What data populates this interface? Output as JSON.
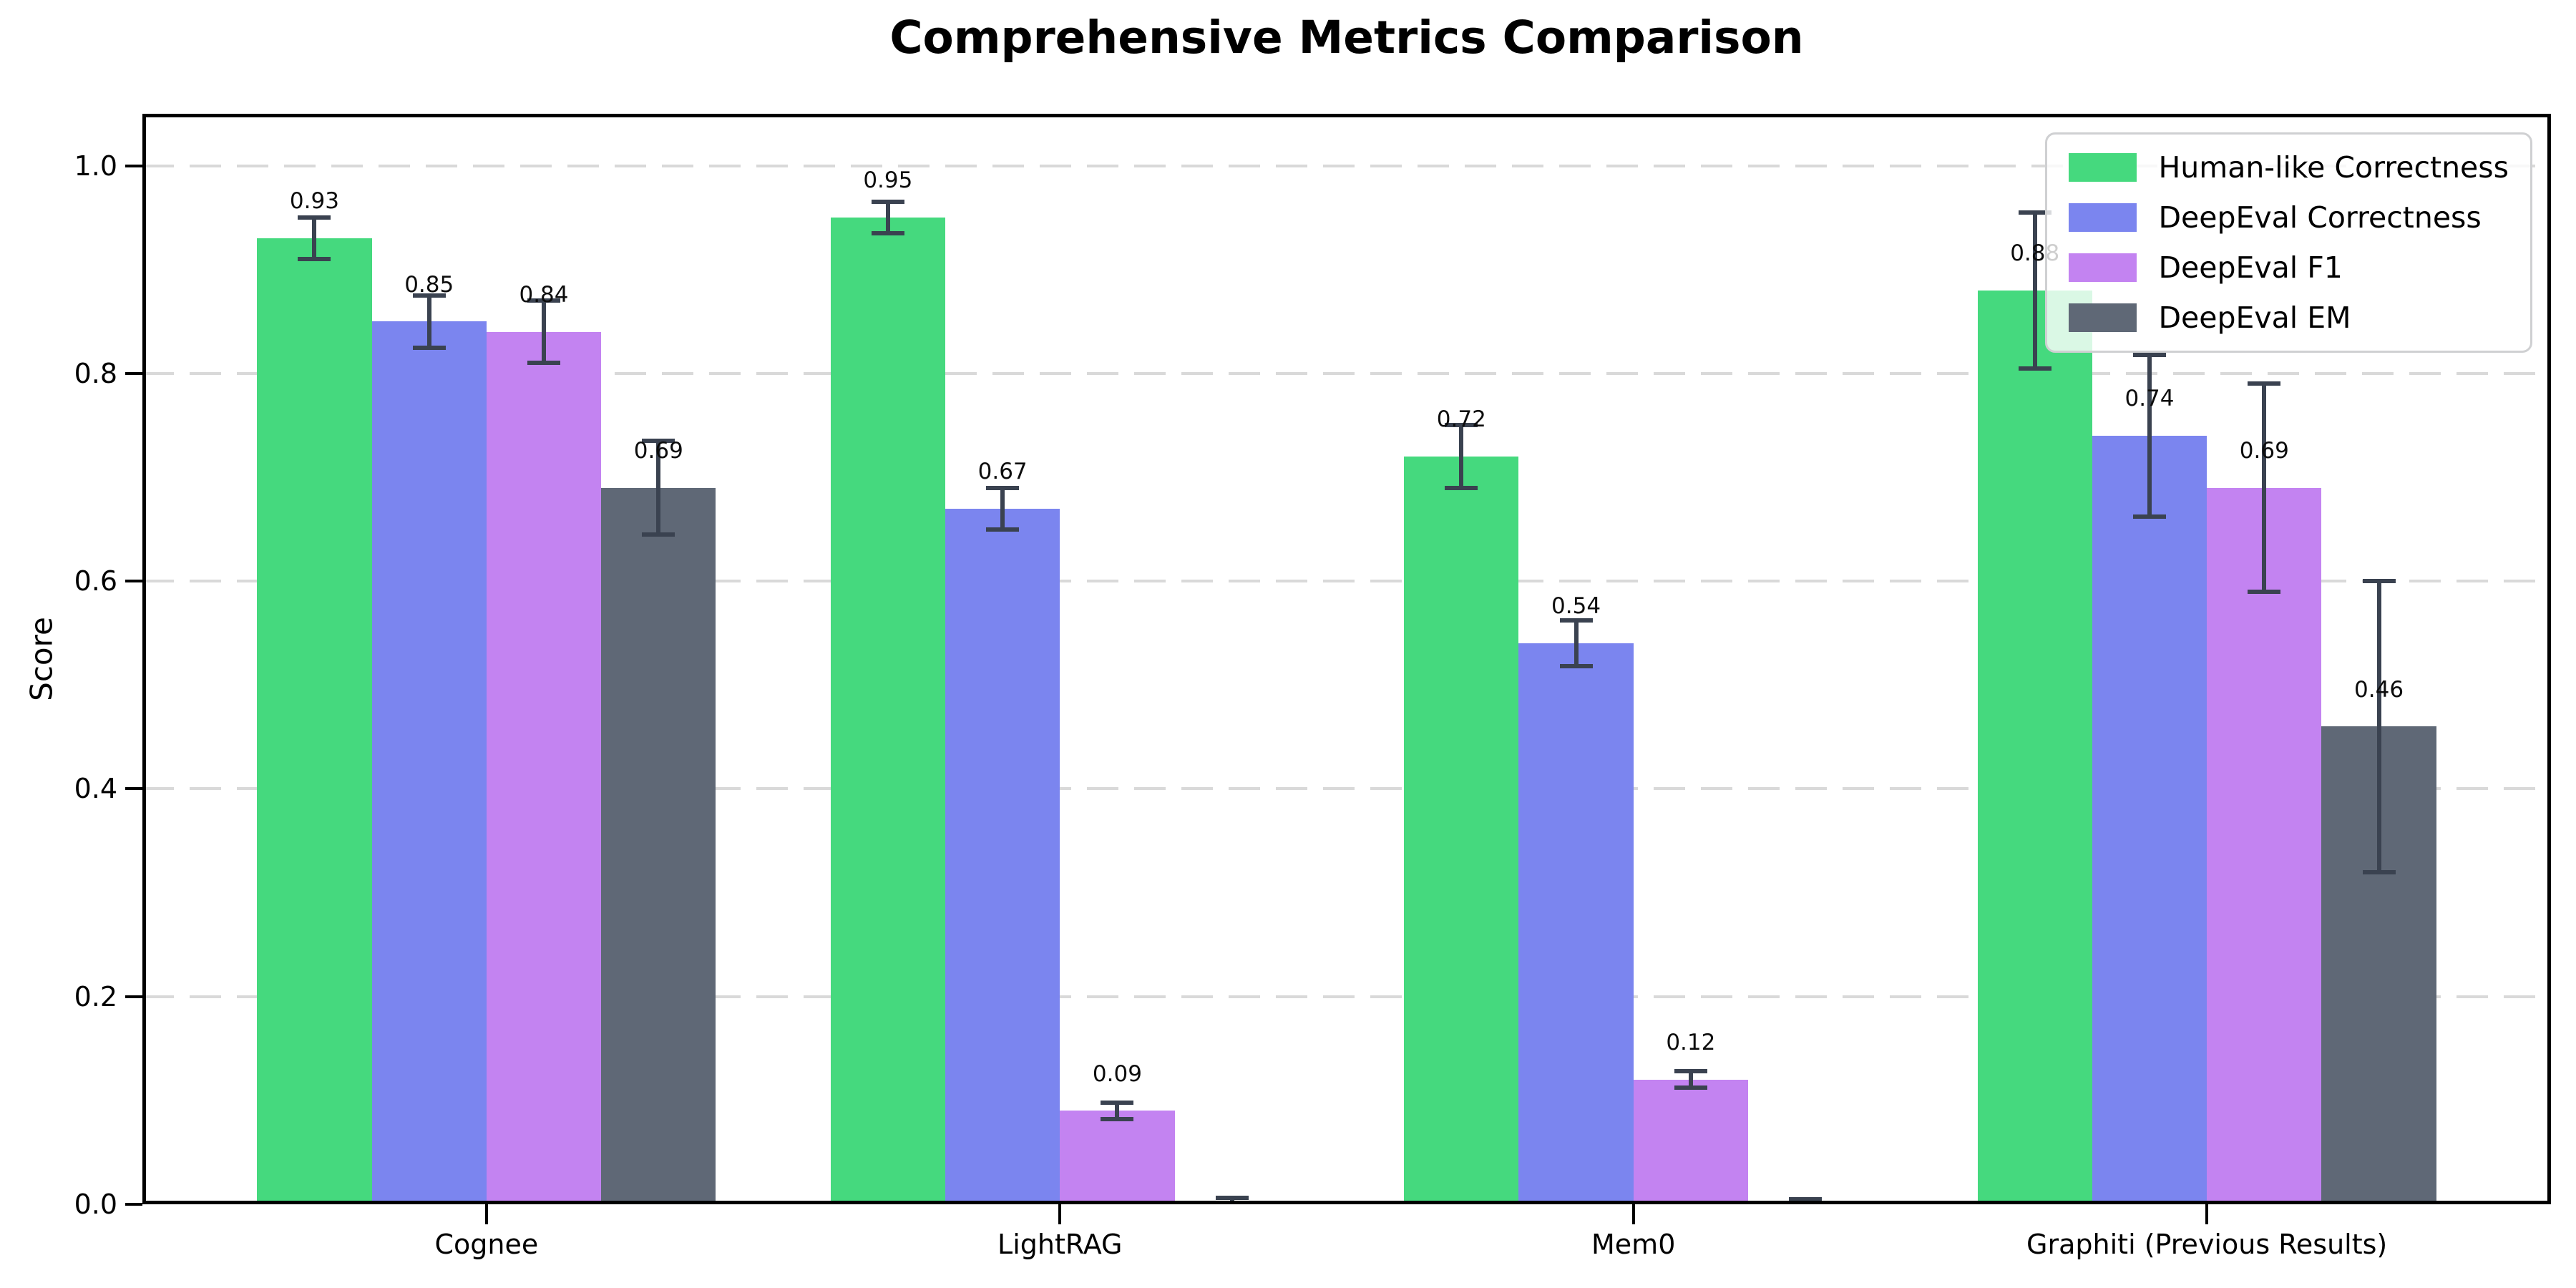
{
  "chart_data": {
    "type": "bar",
    "title": "Comprehensive Metrics Comparison",
    "ylabel": "Score",
    "ylim": [
      0,
      1.05
    ],
    "yticks": [
      "0.0",
      "0.2",
      "0.4",
      "0.6",
      "0.8",
      "1.0"
    ],
    "ytick_values": [
      0,
      0.2,
      0.4,
      0.6,
      0.8,
      1.0
    ],
    "grid": "horizontal-dashed",
    "grid_color": "#d9d9d9",
    "legend_position": "upper right",
    "error_bar_color": "#3a4250",
    "categories": [
      "Cognee",
      "LightRAG",
      "Mem0",
      "Graphiti (Previous Results)"
    ],
    "series": [
      {
        "name": "Human-like Correctness",
        "color": "#45d97e",
        "values": [
          0.93,
          0.95,
          0.72,
          0.88
        ],
        "errors": [
          0.02,
          0.015,
          0.03,
          0.075
        ],
        "labels": [
          "0.93",
          "0.95",
          "0.72",
          "0.88"
        ]
      },
      {
        "name": "DeepEval Correctness",
        "color": "#7b85ef",
        "values": [
          0.85,
          0.67,
          0.54,
          0.74
        ],
        "errors": [
          0.025,
          0.02,
          0.022,
          0.078
        ],
        "labels": [
          "0.85",
          "0.67",
          "0.54",
          "0.74"
        ]
      },
      {
        "name": "DeepEval F1",
        "color": "#c383f1",
        "values": [
          0.84,
          0.09,
          0.12,
          0.69
        ],
        "errors": [
          0.03,
          0.008,
          0.008,
          0.1
        ],
        "labels": [
          "0.84",
          "0.09",
          "0.12",
          "0.69"
        ]
      },
      {
        "name": "DeepEval EM",
        "color": "#5f6876",
        "values": [
          0.69,
          0.0,
          0.0,
          0.46
        ],
        "errors": [
          0.045,
          0.006,
          0.005,
          0.14
        ],
        "labels": [
          "0.69",
          "",
          "",
          "0.46"
        ]
      }
    ]
  }
}
